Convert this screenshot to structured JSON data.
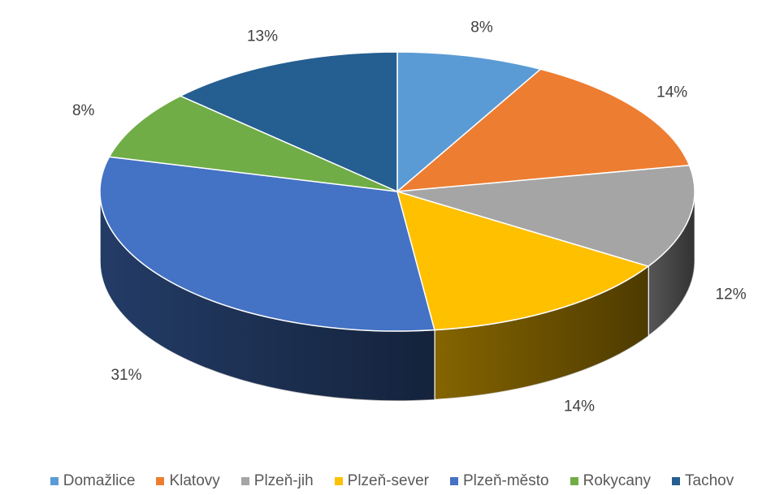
{
  "chart_data": {
    "type": "pie",
    "three_d": true,
    "categories": [
      "Domažlice",
      "Klatovy",
      "Plzeň-jih",
      "Plzeň-sever",
      "Plzeň-město",
      "Rokycany",
      "Tachov"
    ],
    "values": [
      8,
      14,
      12,
      14,
      31,
      8,
      13
    ],
    "labels": [
      "8%",
      "14%",
      "12%",
      "14%",
      "31%",
      "8%",
      "13%"
    ],
    "colors": [
      "#5B9BD5",
      "#ED7D31",
      "#A5A5A5",
      "#FFC000",
      "#4472C4",
      "#70AD47",
      "#255E91"
    ],
    "legend_position": "bottom"
  }
}
